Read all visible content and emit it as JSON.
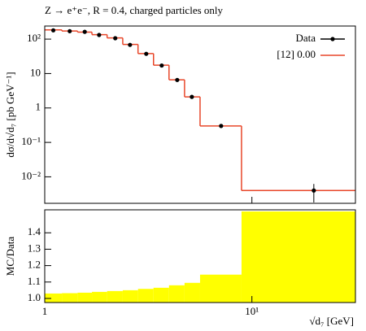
{
  "chart_data": {
    "type": "histogram",
    "title": "Z → e⁺e⁻, R = 0.4, charged particles only",
    "ylabel": "dσ/d√d₇ [pb GeV⁻¹]",
    "xlabel": "√d₇ [GeV]",
    "xscale": "log",
    "xlim": [
      1,
      31.6
    ],
    "xticks": [
      1,
      {
        "value": 10,
        "label": "10¹"
      }
    ],
    "yscale": "log",
    "ylim": [
      0.0017,
      240
    ],
    "yticks": [
      {
        "value": 100,
        "label": "10²"
      },
      10,
      1,
      {
        "value": 0.1,
        "label": "10⁻¹"
      },
      {
        "value": 0.01,
        "label": "10⁻²"
      }
    ],
    "legend": "upper right",
    "bins": [
      1.0,
      1.21,
      1.44,
      1.69,
      2.0,
      2.38,
      2.82,
      3.35,
      3.98,
      4.73,
      5.62,
      8.91,
      31.6
    ],
    "series": [
      {
        "name": "Data",
        "color": "#000000",
        "x": [
          1.1,
          1.32,
          1.56,
          1.83,
          2.19,
          2.58,
          3.09,
          3.67,
          4.36,
          5.13,
          7.1,
          19.9
        ],
        "values": [
          180,
          170,
          163,
          132,
          106,
          68,
          37.4,
          17.1,
          6.5,
          2.1,
          0.3,
          0.004
        ],
        "yerr": [
          null,
          null,
          null,
          null,
          null,
          null,
          null,
          null,
          null,
          null,
          null,
          0.0022
        ]
      },
      {
        "name": "[12] 0.00",
        "color": "#e8472a",
        "values": [
          185,
          172,
          160,
          135,
          108,
          70,
          38,
          17.5,
          6.6,
          2.1,
          0.3,
          0.004
        ]
      }
    ],
    "ratio": {
      "ylabel": "MC/Data",
      "color": "#ffff00",
      "ylim": [
        0.975,
        1.54
      ],
      "yticks": [
        {
          "value": 1,
          "label": "1.0"
        },
        1.1,
        1.2,
        1.3,
        1.4
      ],
      "values": [
        1.03,
        1.032,
        1.035,
        1.04,
        1.045,
        1.05,
        1.058,
        1.065,
        1.08,
        1.095,
        1.145,
        1.53
      ]
    }
  }
}
